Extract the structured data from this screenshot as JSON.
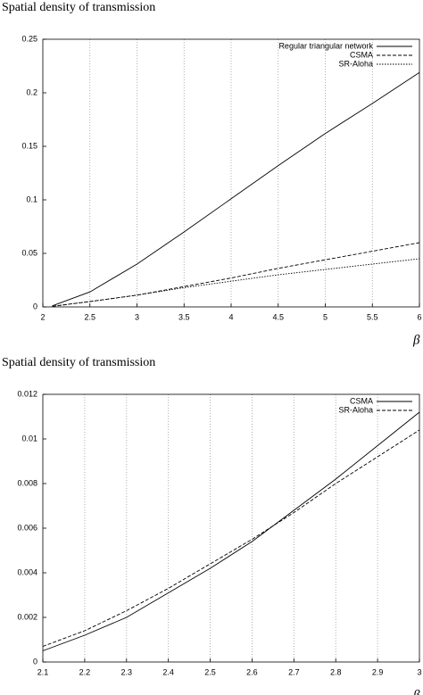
{
  "chart_data": [
    {
      "type": "line",
      "title": "Spatial density of transmission",
      "x_label": "β",
      "x": [
        2.1,
        2.5,
        3,
        3.5,
        4,
        4.5,
        5,
        5.5,
        6
      ],
      "series": [
        {
          "name": "Regular triangular network",
          "color": "#000000",
          "style": "solid",
          "values": [
            0.001,
            0.014,
            0.04,
            0.07,
            0.101,
            0.132,
            0.162,
            0.19,
            0.219
          ]
        },
        {
          "name": "CSMA",
          "color": "#000000",
          "style": "dashed",
          "values": [
            0.0005,
            0.005,
            0.011,
            0.019,
            0.027,
            0.036,
            0.044,
            0.052,
            0.06
          ]
        },
        {
          "name": "SR-Aloha",
          "color": "#000000",
          "style": "dotted",
          "values": [
            0.0006,
            0.005,
            0.011,
            0.018,
            0.024,
            0.03,
            0.035,
            0.04,
            0.045
          ]
        }
      ],
      "xlim": [
        2,
        6
      ],
      "xticks": [
        2,
        2.5,
        3,
        3.5,
        4,
        4.5,
        5,
        5.5,
        6
      ],
      "ylim": [
        0,
        0.25
      ],
      "yticks": [
        0,
        0.05,
        0.1,
        0.15,
        0.2,
        0.25
      ],
      "grid": true,
      "legend": "upper right"
    },
    {
      "type": "line",
      "title": "Spatial density of transmission",
      "x_label": "β",
      "x": [
        2.1,
        2.2,
        2.3,
        2.4,
        2.5,
        2.6,
        2.7,
        2.8,
        2.9,
        3
      ],
      "series": [
        {
          "name": "CSMA",
          "color": "#000000",
          "style": "solid",
          "values": [
            0.0005,
            0.0012,
            0.002,
            0.0031,
            0.0042,
            0.0054,
            0.0068,
            0.0082,
            0.0097,
            0.0112
          ]
        },
        {
          "name": "SR-Aloha",
          "color": "#000000",
          "style": "dashed",
          "values": [
            0.0007,
            0.0014,
            0.0023,
            0.0033,
            0.0044,
            0.0055,
            0.0067,
            0.008,
            0.0092,
            0.0104
          ]
        }
      ],
      "xlim": [
        2.1,
        3
      ],
      "xticks": [
        2.1,
        2.2,
        2.3,
        2.4,
        2.5,
        2.6,
        2.7,
        2.8,
        2.9,
        3
      ],
      "ylim": [
        0,
        0.012
      ],
      "yticks": [
        0,
        0.002,
        0.004,
        0.006,
        0.008,
        0.01,
        0.012
      ],
      "grid": true,
      "legend": "upper right"
    }
  ]
}
